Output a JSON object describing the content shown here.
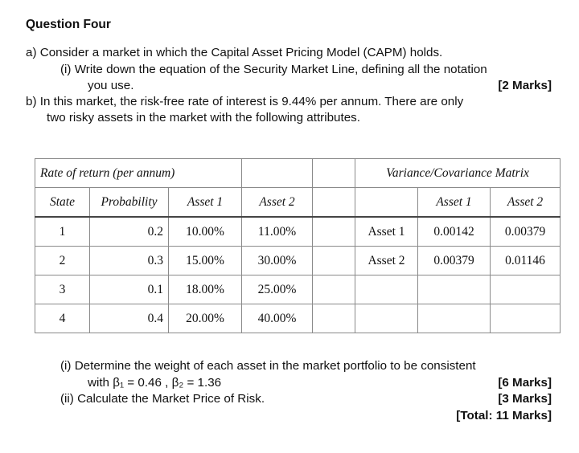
{
  "heading": "Question Four",
  "part_a": {
    "intro": "a)  Consider a market in which the Capital Asset Pricing Model (CAPM) holds.",
    "sub_i_line1": "(i)   Write down the equation of the Security Market Line, defining all the notation",
    "sub_i_line2": "you use.",
    "sub_i_marks": "[2 Marks]"
  },
  "part_b": {
    "line1": "b)  In this market, the risk-free rate of interest is 9.44% per annum.  There are only",
    "line2": "two risky assets in the market with the following attributes."
  },
  "table": {
    "returns_title": "Rate of return (per annum)",
    "cov_title": "Variance/Covariance Matrix",
    "headers": {
      "state": "State",
      "probability": "Probability",
      "asset1": "Asset 1",
      "asset2": "Asset 2"
    },
    "cov_headers": {
      "asset1": "Asset 1",
      "asset2": "Asset 2"
    },
    "rows": [
      {
        "state": "1",
        "probability": "0.2",
        "asset1": "10.00%",
        "asset2": "11.00%"
      },
      {
        "state": "2",
        "probability": "0.3",
        "asset1": "15.00%",
        "asset2": "30.00%"
      },
      {
        "state": "3",
        "probability": "0.1",
        "asset1": "18.00%",
        "asset2": "25.00%"
      },
      {
        "state": "4",
        "probability": "0.4",
        "asset1": "20.00%",
        "asset2": "40.00%"
      }
    ],
    "cov_rows": [
      {
        "label": "Asset 1",
        "asset1": "0.00142",
        "asset2": "0.00379"
      },
      {
        "label": "Asset 2",
        "asset1": "0.00379",
        "asset2": "0.01146"
      }
    ]
  },
  "questions": {
    "i_line1": "(i)   Determine the weight of each asset in the market portfolio to be consistent",
    "i_line2": "with β₁ = 0.46 , β₂ = 1.36",
    "i_marks": "[6 Marks]",
    "ii_line": "(ii)  Calculate the Market Price of Risk.",
    "ii_marks": "[3 Marks]",
    "total": "[Total: 11 Marks]"
  }
}
